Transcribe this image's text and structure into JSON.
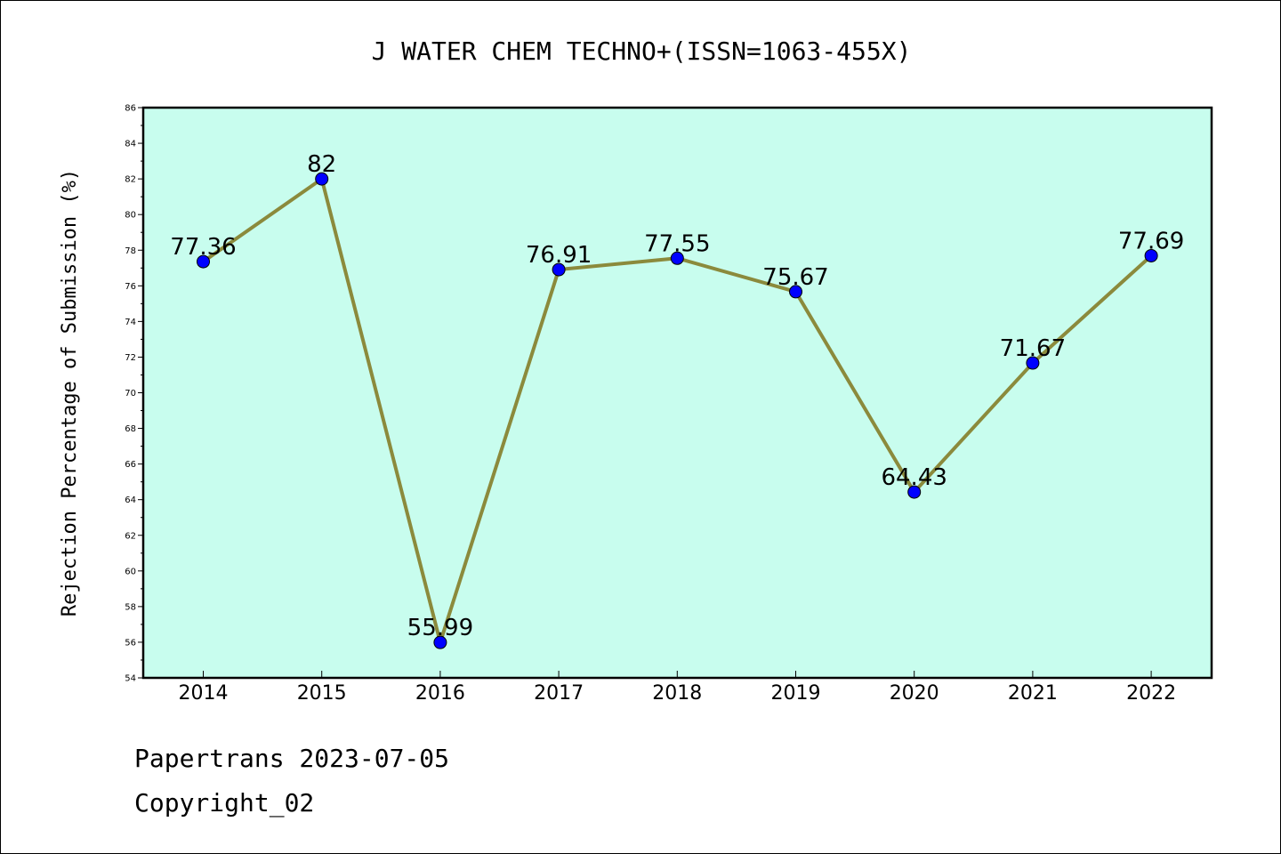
{
  "chart_data": {
    "type": "line",
    "title": "J WATER CHEM TECHNO+(ISSN=1063-455X)",
    "xlabel": "",
    "ylabel": "Rejection Percentage of Submission (%)",
    "categories": [
      "2014",
      "2015",
      "2016",
      "2017",
      "2018",
      "2019",
      "2020",
      "2021",
      "2022"
    ],
    "series": [
      {
        "values": [
          77.36,
          82,
          55.99,
          76.91,
          77.55,
          75.67,
          64.43,
          71.67,
          77.69
        ],
        "labels": [
          "77.36",
          "82",
          "55.99",
          "76.91",
          "77.55",
          "75.67",
          "64.43",
          "71.67",
          "77.69"
        ]
      }
    ],
    "ylim": [
      54,
      86
    ],
    "yticks": [
      "54",
      "56",
      "58",
      "60",
      "62",
      "64",
      "66",
      "68",
      "70",
      "72",
      "74",
      "76",
      "78",
      "80",
      "82",
      "84",
      "86"
    ],
    "grid": false,
    "colors": {
      "plot_background": "#c8fdee",
      "line": "#8b8a3c",
      "marker": "#0000ff"
    }
  },
  "footer": {
    "line1": "Papertrans 2023-07-05",
    "line2": "Copyright_02"
  }
}
